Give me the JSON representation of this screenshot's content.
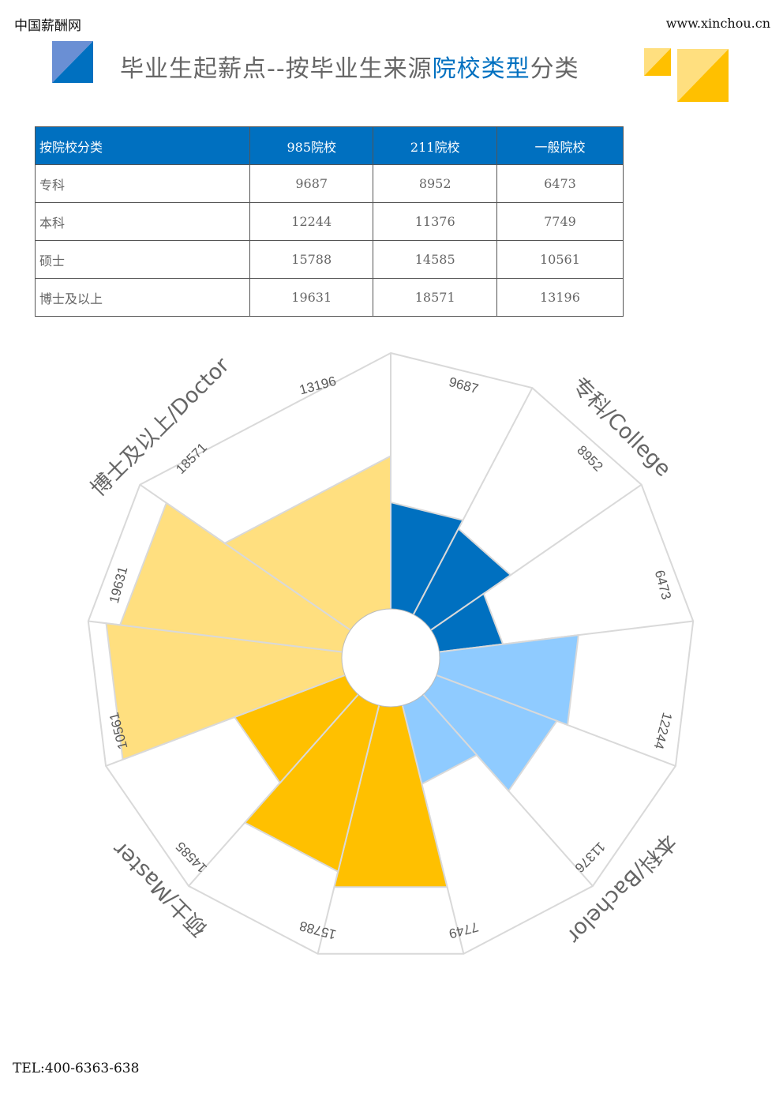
{
  "header": {
    "site_name": "中国薪酬网",
    "url": "www.xinchou.cn",
    "title_part1": "毕业生起薪点--按毕业生来源",
    "title_highlight": "院校类型",
    "title_part2": "分类"
  },
  "table": {
    "headers": [
      "按院校分类",
      "985院校",
      "211院校",
      "一般院校"
    ],
    "rows": [
      [
        "专科",
        "9687",
        "8952",
        "6473"
      ],
      [
        "本科",
        "12244",
        "11376",
        "7749"
      ],
      [
        "硕士",
        "15788",
        "14585",
        "10561"
      ],
      [
        "博士及以上",
        "19631",
        "18571",
        "13196"
      ]
    ]
  },
  "colors": {
    "985": "#0070C0",
    "bachelor": "#8FCBFF",
    "master": "#FFC000",
    "doctor": "#FFDF7F",
    "frame": "#D9D9D9",
    "accent_blue": "#0070C0"
  },
  "chart_data": {
    "type": "polar-bar",
    "groups": [
      {
        "name": "专科/College",
        "color": "#0070C0",
        "values": [
          9687,
          8952,
          6473
        ]
      },
      {
        "name": "本科/Bachelor",
        "color": "#8FCBFF",
        "values": [
          12244,
          11376,
          7749
        ]
      },
      {
        "name": "硕士/Master",
        "color": "#FFC000",
        "values": [
          15788,
          14585,
          10561
        ]
      },
      {
        "name": "博士及以上/Doctor",
        "color": "#FFDF7F",
        "values": [
          19631,
          18571,
          13196
        ]
      }
    ],
    "value_labels": [
      "9687",
      "8952",
      "6473",
      "12244",
      "11376",
      "7749",
      "15788",
      "14585",
      "10561",
      "19631",
      "18571",
      "13196"
    ],
    "direction": "clockwise from top"
  },
  "footer": {
    "tel": "TEL:400-6363-638"
  }
}
